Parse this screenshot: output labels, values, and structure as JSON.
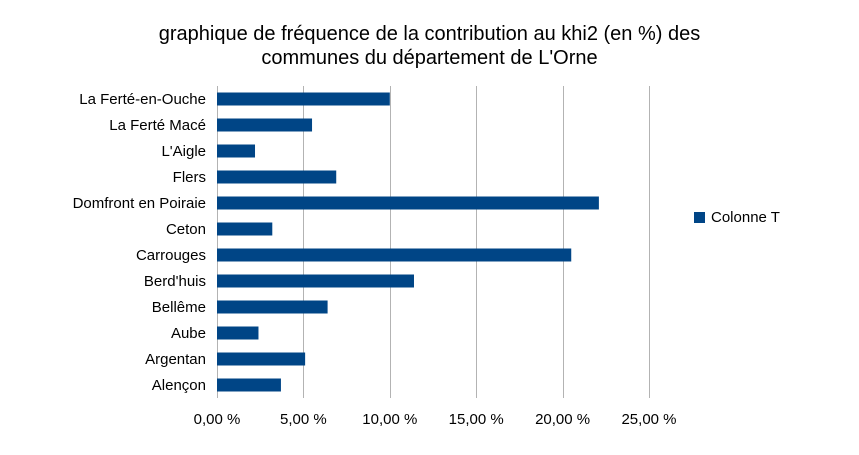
{
  "chart_data": {
    "type": "bar",
    "orientation": "horizontal",
    "title_lines": [
      "graphique de fréquence de la contribution au khi2 (en %) des",
      "communes du département de L'Orne"
    ],
    "categories": [
      "La Ferté-en-Ouche",
      "La Ferté Macé",
      "L'Aigle",
      "Flers",
      "Domfront en Poiraie",
      "Ceton",
      "Carrouges",
      "Berd'huis",
      "Bellême",
      "Aube",
      "Argentan",
      "Alençon"
    ],
    "series": [
      {
        "name": "Colonne T",
        "color": "#004586",
        "values": [
          10.0,
          5.5,
          2.2,
          6.9,
          22.1,
          3.2,
          20.5,
          11.4,
          6.4,
          2.4,
          5.1,
          3.7
        ]
      }
    ],
    "xlim": [
      0,
      25
    ],
    "x_ticks": [
      "0,00 %",
      "5,00 %",
      "10,00 %",
      "15,00 %",
      "20,00 %",
      "25,00 %"
    ],
    "x_tick_values": [
      0,
      5,
      10,
      15,
      20,
      25
    ],
    "grid": true,
    "legend_position": "right"
  }
}
